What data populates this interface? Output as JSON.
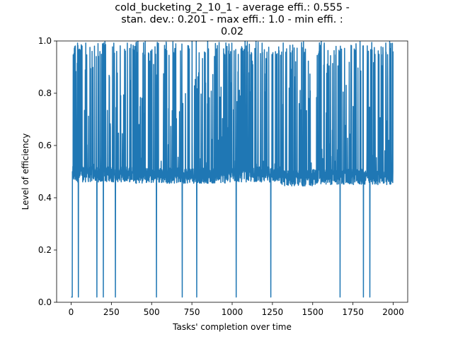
{
  "chart_data": {
    "type": "line",
    "title_lines": [
      "cold_bucketing_2_10_1 - average effi.: 0.555 -",
      "stan. dev.: 0.201 - max effi.: 1.0 - min effi. :",
      "0.02"
    ],
    "xlabel": "Tasks' completion over time",
    "ylabel": "Level of efficiency",
    "xlim": [
      -90,
      2090
    ],
    "ylim": [
      0,
      1.0
    ],
    "xticks": [
      0,
      250,
      500,
      750,
      1000,
      1250,
      1500,
      1750,
      2000
    ],
    "xtick_labels": [
      "0",
      "250",
      "500",
      "750",
      "1000",
      "1250",
      "1500",
      "1750",
      "2000"
    ],
    "yticks": [
      0.0,
      0.2,
      0.4,
      0.6,
      0.8,
      1.0
    ],
    "ytick_labels": [
      "0.0",
      "0.2",
      "0.4",
      "0.6",
      "0.8",
      "1.0"
    ],
    "grid": false,
    "series": [
      {
        "color": "#1f77b4",
        "n_points": 2000,
        "stats": {
          "average": 0.555,
          "std_dev": 0.201,
          "max": 1.0,
          "min": 0.02
        },
        "baseline_segments": [
          {
            "x": [
              10,
              400
            ],
            "y": 0.46
          },
          {
            "x": [
              400,
              1000
            ],
            "y": 0.455
          },
          {
            "x": [
              1000,
              1300
            ],
            "y": 0.46
          },
          {
            "x": [
              1300,
              1500
            ],
            "y": 0.445
          },
          {
            "x": [
              1500,
              2000
            ],
            "y": 0.45
          }
        ],
        "start_values": [
          0.02,
          0.02,
          0.02,
          0.02,
          0.02,
          0.02,
          0.02,
          0.02,
          0.5,
          0.48
        ],
        "dense_high_range": [
          10,
          60
        ],
        "min_drops_x": [
          45,
          160,
          200,
          275,
          530,
          690,
          780,
          1025,
          1240,
          1670,
          1815,
          1855
        ],
        "min_drop_value": 0.02,
        "peak_value": 1.0,
        "end_value": 0.96
      }
    ]
  }
}
